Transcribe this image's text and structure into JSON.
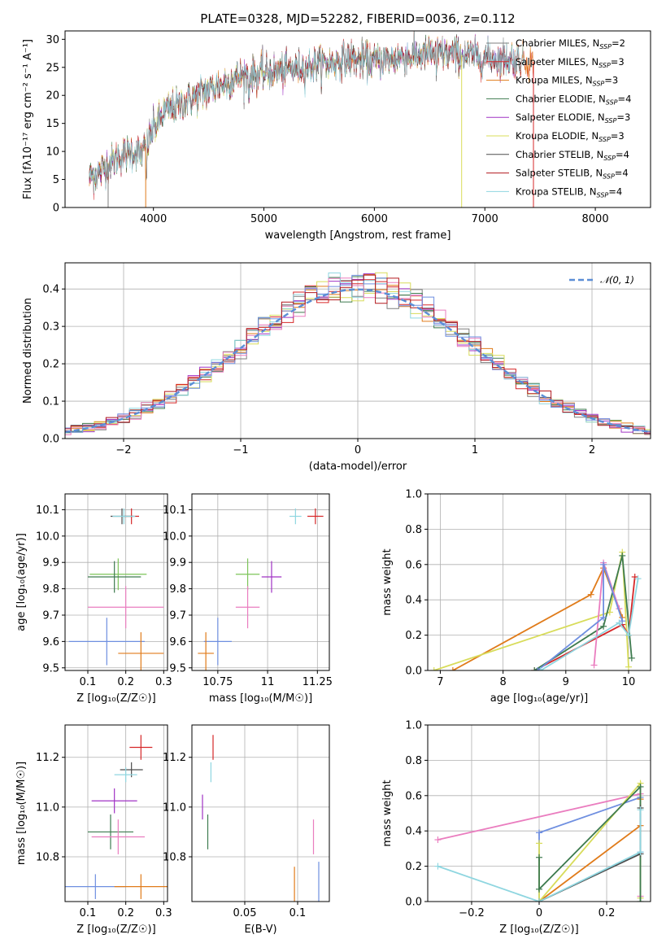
{
  "title": "PLATE=0328, MJD=52282, FIBERID=0036, z=0.112",
  "colors": {
    "chabrier_miles": "#7f7f7f",
    "salpeter_miles": "#d62728",
    "kroupa_miles": "#e07b1a",
    "chabrier_elodie": "#3e7b4f",
    "salpeter_elodie": "#a033c4",
    "kroupa_elodie": "#d8dc5a",
    "chabrier_stelib": "#4d4d4d",
    "salpeter_stelib": "#b3191f",
    "kroupa_stelib": "#8fd6e0",
    "normal": "#5b8ed6",
    "pink": "#ea7dbf",
    "blue": "#6f8fe0",
    "green": "#7dc45a",
    "teal": "#5bb5b5"
  },
  "legend_models": [
    {
      "label": "Chabrier MILES, N",
      "sub": "SSP",
      "tail": "=2",
      "color": "chabrier_miles"
    },
    {
      "label": "Salpeter MILES, N",
      "sub": "SSP",
      "tail": "=3",
      "color": "salpeter_miles"
    },
    {
      "label": "Kroupa MILES, N",
      "sub": "SSP",
      "tail": "=3",
      "color": "kroupa_miles"
    },
    {
      "label": "Chabrier ELODIE, N",
      "sub": "SSP",
      "tail": "=4",
      "color": "chabrier_elodie"
    },
    {
      "label": "Salpeter ELODIE, N",
      "sub": "SSP",
      "tail": "=3",
      "color": "salpeter_elodie"
    },
    {
      "label": "Kroupa ELODIE, N",
      "sub": "SSP",
      "tail": "=3",
      "color": "kroupa_elodie"
    },
    {
      "label": "Chabrier STELIB, N",
      "sub": "SSP",
      "tail": "=4",
      "color": "chabrier_stelib"
    },
    {
      "label": "Salpeter STELIB, N",
      "sub": "SSP",
      "tail": "=4",
      "color": "salpeter_stelib"
    },
    {
      "label": "Kroupa STELIB, N",
      "sub": "SSP",
      "tail": "=4",
      "color": "kroupa_stelib"
    }
  ],
  "chart_data": [
    {
      "id": "spectrum",
      "type": "line",
      "xlabel": "wavelength [Angstrom, rest frame]",
      "ylabel": "Flux [fλ10⁻¹⁷ erg cm⁻² s⁻¹ A⁻¹]",
      "xlim": [
        3200,
        8500
      ],
      "ylim": [
        0,
        31.5
      ],
      "xticks": [
        4000,
        5000,
        6000,
        7000,
        8000
      ],
      "yticks": [
        0,
        5,
        10,
        15,
        20,
        25,
        30
      ],
      "x_range": [
        3420,
        7440
      ],
      "flux_trend": [
        [
          3420,
          5.5
        ],
        [
          3500,
          6
        ],
        [
          3600,
          8
        ],
        [
          3700,
          9
        ],
        [
          3800,
          10
        ],
        [
          3900,
          9.5
        ],
        [
          4000,
          14
        ],
        [
          4100,
          17
        ],
        [
          4300,
          19
        ],
        [
          4500,
          21
        ],
        [
          4800,
          23.5
        ],
        [
          5000,
          24
        ],
        [
          5200,
          24.5
        ],
        [
          5500,
          25.5
        ],
        [
          5800,
          26.5
        ],
        [
          6000,
          26
        ],
        [
          6300,
          27
        ],
        [
          6600,
          27.5
        ],
        [
          6900,
          27
        ],
        [
          7200,
          26.5
        ],
        [
          7440,
          26
        ]
      ]
    },
    {
      "id": "residuals",
      "type": "line",
      "xlabel": "(data-model)/error",
      "ylabel": "Normed distribution",
      "xlim": [
        -2.5,
        2.5
      ],
      "ylim": [
        0,
        0.47
      ],
      "xticks": [
        -2,
        -1,
        0,
        1,
        2
      ],
      "yticks": [
        0.0,
        0.1,
        0.2,
        0.3,
        0.4
      ],
      "legend": "𝒩(0, 1)",
      "bin_width": 0.1
    },
    {
      "id": "age_vs_Z",
      "type": "scatter",
      "xlabel": "Z [log₁₀(Z/Z☉)]",
      "ylabel": "age  [log₁₀(age/yr)]",
      "xlim": [
        0.04,
        0.31
      ],
      "ylim": [
        9.49,
        10.16
      ],
      "xticks": [
        0.1,
        0.2,
        0.3
      ],
      "yticks": [
        9.5,
        9.6,
        9.7,
        9.8,
        9.9,
        10.0,
        10.1
      ],
      "points": [
        {
          "x": 0.215,
          "y": 10.075,
          "xerr": 0.02,
          "yerr": 0.03,
          "c": "salpeter_miles"
        },
        {
          "x": 0.19,
          "y": 10.075,
          "xerr": 0.03,
          "yerr": 0.03,
          "c": "chabrier_stelib"
        },
        {
          "x": 0.195,
          "y": 10.075,
          "xerr": 0.03,
          "yerr": 0.03,
          "c": "kroupa_stelib"
        },
        {
          "x": 0.18,
          "y": 9.855,
          "xerr": 0.075,
          "yerr": 0.06,
          "c": "green"
        },
        {
          "x": 0.17,
          "y": 9.845,
          "xerr": 0.07,
          "yerr": 0.06,
          "c": "chabrier_elodie"
        },
        {
          "x": 0.2,
          "y": 9.73,
          "xerr": 0.1,
          "yerr": 0.08,
          "c": "pink"
        },
        {
          "x": 0.15,
          "y": 9.6,
          "xerr": 0.1,
          "yerr": 0.09,
          "c": "blue"
        },
        {
          "x": 0.24,
          "y": 9.555,
          "xerr": 0.06,
          "yerr": 0.08,
          "c": "kroupa_miles"
        }
      ]
    },
    {
      "id": "age_vs_mass",
      "type": "scatter",
      "xlabel": "mass [log₁₀(M/M☉)]",
      "xlim": [
        10.62,
        11.31
      ],
      "ylim": [
        9.49,
        10.16
      ],
      "xticks": [
        10.75,
        11.0,
        11.25
      ],
      "yticks": [
        9.5,
        9.6,
        9.7,
        9.8,
        9.9,
        10.0,
        10.1
      ],
      "points": [
        {
          "x": 11.24,
          "y": 10.075,
          "xerr": 0.04,
          "yerr": 0.03,
          "c": "salpeter_miles"
        },
        {
          "x": 11.14,
          "y": 10.075,
          "xerr": 0.03,
          "yerr": 0.03,
          "c": "kroupa_stelib"
        },
        {
          "x": 11.02,
          "y": 9.845,
          "xerr": 0.05,
          "yerr": 0.06,
          "c": "salpeter_elodie"
        },
        {
          "x": 10.9,
          "y": 9.855,
          "xerr": 0.06,
          "yerr": 0.06,
          "c": "green"
        },
        {
          "x": 10.9,
          "y": 9.73,
          "xerr": 0.06,
          "yerr": 0.08,
          "c": "pink"
        },
        {
          "x": 10.75,
          "y": 9.6,
          "xerr": 0.07,
          "yerr": 0.09,
          "c": "blue"
        },
        {
          "x": 10.69,
          "y": 9.555,
          "xerr": 0.04,
          "yerr": 0.08,
          "c": "kroupa_miles"
        }
      ]
    },
    {
      "id": "weight_vs_age",
      "type": "line",
      "xlabel": "age  [log₁₀(age/yr)]",
      "ylabel": "mass weight",
      "xlim": [
        6.8,
        10.35
      ],
      "ylim": [
        0,
        1
      ],
      "xticks": [
        7,
        8,
        9,
        10
      ],
      "yticks": [
        0.0,
        0.2,
        0.4,
        0.6,
        0.8,
        1.0
      ],
      "series": [
        {
          "c": "kroupa_miles",
          "x": [
            7.2,
            9.4,
            9.6,
            9.9
          ],
          "y": [
            0.0,
            0.43,
            0.58,
            0.3
          ]
        },
        {
          "c": "kroupa_elodie",
          "x": [
            6.9,
            9.7,
            9.9,
            10.0
          ],
          "y": [
            0.0,
            0.33,
            0.67,
            0.02
          ]
        },
        {
          "c": "salpeter_miles",
          "x": [
            8.5,
            9.9,
            10.0,
            10.1
          ],
          "y": [
            0.0,
            0.26,
            0.2,
            0.53
          ]
        },
        {
          "c": "chabrier_elodie",
          "x": [
            8.5,
            9.6,
            9.9,
            10.05
          ],
          "y": [
            0.0,
            0.25,
            0.65,
            0.07
          ]
        },
        {
          "c": "pink",
          "x": [
            9.45,
            9.6,
            9.85
          ],
          "y": [
            0.03,
            0.61,
            0.35
          ]
        },
        {
          "c": "blue",
          "x": [
            8.55,
            9.6,
            9.6,
            9.9
          ],
          "y": [
            0.0,
            0.3,
            0.6,
            0.28
          ]
        },
        {
          "c": "kroupa_stelib",
          "x": [
            8.6,
            9.85,
            10.0,
            10.15
          ],
          "y": [
            0.0,
            0.27,
            0.2,
            0.52
          ]
        }
      ]
    },
    {
      "id": "mass_vs_Z",
      "type": "scatter",
      "xlabel": "Z [log₁₀(Z/Z☉)]",
      "ylabel": "mass [log₁₀(M/M☉)]",
      "xlim": [
        0.04,
        0.31
      ],
      "ylim": [
        10.62,
        11.33
      ],
      "xticks": [
        0.1,
        0.2,
        0.3
      ],
      "yticks": [
        10.8,
        11.0,
        11.2
      ],
      "points": [
        {
          "x": 0.24,
          "y": 11.24,
          "xerr": 0.03,
          "yerr": 0.05,
          "c": "salpeter_miles"
        },
        {
          "x": 0.215,
          "y": 11.15,
          "xerr": 0.03,
          "yerr": 0.03,
          "c": "chabrier_stelib"
        },
        {
          "x": 0.2,
          "y": 11.13,
          "xerr": 0.03,
          "yerr": 0.03,
          "c": "kroupa_stelib"
        },
        {
          "x": 0.17,
          "y": 11.025,
          "xerr": 0.06,
          "yerr": 0.05,
          "c": "salpeter_elodie"
        },
        {
          "x": 0.16,
          "y": 10.9,
          "xerr": 0.06,
          "yerr": 0.07,
          "c": "chabrier_elodie"
        },
        {
          "x": 0.18,
          "y": 10.88,
          "xerr": 0.07,
          "yerr": 0.07,
          "c": "pink"
        },
        {
          "x": 0.12,
          "y": 10.68,
          "xerr": 0.08,
          "yerr": 0.05,
          "c": "blue"
        },
        {
          "x": 0.24,
          "y": 10.68,
          "xerr": 0.07,
          "yerr": 0.05,
          "c": "kroupa_miles"
        }
      ]
    },
    {
      "id": "mass_vs_ebv",
      "type": "scatter",
      "xlabel": "E(B-V)",
      "xlim": [
        0.0,
        0.13
      ],
      "ylim": [
        10.62,
        11.33
      ],
      "xticks": [
        0.05,
        0.1
      ],
      "yticks": [
        10.8,
        11.0,
        11.2
      ],
      "points": [
        {
          "x": 0.02,
          "y": 11.24,
          "yerr": 0.05,
          "c": "salpeter_miles"
        },
        {
          "x": 0.018,
          "y": 11.14,
          "yerr": 0.04,
          "c": "kroupa_stelib"
        },
        {
          "x": 0.01,
          "y": 11.0,
          "yerr": 0.05,
          "c": "salpeter_elodie"
        },
        {
          "x": 0.015,
          "y": 10.9,
          "yerr": 0.07,
          "c": "chabrier_elodie"
        },
        {
          "x": 0.115,
          "y": 10.88,
          "yerr": 0.07,
          "c": "pink"
        },
        {
          "x": 0.12,
          "y": 10.68,
          "yerr": 0.1,
          "c": "blue"
        },
        {
          "x": 0.097,
          "y": 10.68,
          "yerr": 0.08,
          "c": "kroupa_miles"
        }
      ]
    },
    {
      "id": "weight_vs_Z",
      "type": "line",
      "xlabel": "Z [log₁₀(Z/Z☉)]",
      "ylabel": "mass weight",
      "xlim": [
        -0.33,
        0.33
      ],
      "ylim": [
        0,
        1
      ],
      "xticks": [
        -0.2,
        0.0,
        0.2
      ],
      "yticks": [
        0.0,
        0.2,
        0.4,
        0.6,
        0.8,
        1.0
      ],
      "series": [
        {
          "c": "blue",
          "x": [
            0.0,
            0.0,
            0.3,
            0.3
          ],
          "y": [
            0.0,
            0.39,
            0.59,
            0.28
          ]
        },
        {
          "c": "pink",
          "x": [
            -0.3,
            0.3,
            0.3
          ],
          "y": [
            0.35,
            0.61,
            0.03
          ]
        },
        {
          "c": "kroupa_miles",
          "x": [
            0.0,
            0.3,
            0.3
          ],
          "y": [
            0.0,
            0.43,
            0.58
          ]
        },
        {
          "c": "kroupa_elodie",
          "x": [
            0.0,
            0.0,
            0.3,
            0.3
          ],
          "y": [
            0.33,
            0.0,
            0.67,
            0.02
          ]
        },
        {
          "c": "chabrier_elodie",
          "x": [
            0.0,
            0.0,
            0.3,
            0.3
          ],
          "y": [
            0.25,
            0.07,
            0.65,
            0.0
          ]
        },
        {
          "c": "chabrier_stelib",
          "x": [
            0.0,
            0.3,
            0.3
          ],
          "y": [
            0.0,
            0.27,
            0.53
          ]
        },
        {
          "c": "kroupa_stelib",
          "x": [
            -0.3,
            0.0,
            0.3,
            0.3
          ],
          "y": [
            0.2,
            0.0,
            0.28,
            0.52
          ]
        }
      ]
    }
  ]
}
